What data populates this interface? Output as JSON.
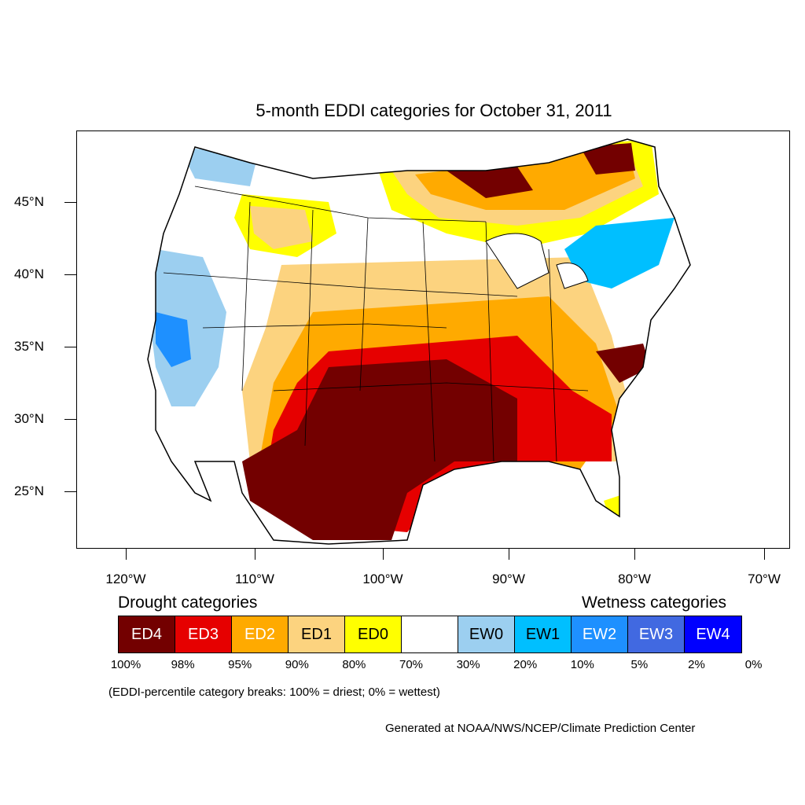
{
  "title": "5-month EDDI categories for October 31, 2011",
  "map": {
    "lat_labels": [
      "45°N",
      "40°N",
      "35°N",
      "30°N",
      "25°N"
    ],
    "lon_labels": [
      "120°W",
      "110°W",
      "100°W",
      "90°W",
      "80°W",
      "70°W"
    ]
  },
  "legend": {
    "drought_heading": "Drought categories",
    "wetness_heading": "Wetness categories",
    "categories": [
      {
        "label": "ED4",
        "color": "#730000",
        "text_color": "#ffffff"
      },
      {
        "label": "ED3",
        "color": "#e60000",
        "text_color": "#ffffff"
      },
      {
        "label": "ED2",
        "color": "#ffaa00",
        "text_color": "#ffffff"
      },
      {
        "label": "ED1",
        "color": "#fcd37f",
        "text_color": "#000000"
      },
      {
        "label": "ED0",
        "color": "#ffff00",
        "text_color": "#000000"
      },
      {
        "label": "",
        "color": "#ffffff",
        "text_color": "#000000"
      },
      {
        "label": "EW0",
        "color": "#9ccff0",
        "text_color": "#000000"
      },
      {
        "label": "EW1",
        "color": "#00bfff",
        "text_color": "#000000"
      },
      {
        "label": "EW2",
        "color": "#1e90ff",
        "text_color": "#ffffff"
      },
      {
        "label": "EW3",
        "color": "#4169e1",
        "text_color": "#ffffff"
      },
      {
        "label": "EW4",
        "color": "#0000ff",
        "text_color": "#ffffff"
      }
    ],
    "percentiles": [
      "100%",
      "98%",
      "95%",
      "90%",
      "80%",
      "70%",
      "30%",
      "20%",
      "10%",
      "5%",
      "2%",
      "0%"
    ]
  },
  "note": "(EDDI-percentile category breaks: 100% = driest; 0% = wettest)",
  "credit": "Generated at NOAA/NWS/NCEP/Climate Prediction Center"
}
